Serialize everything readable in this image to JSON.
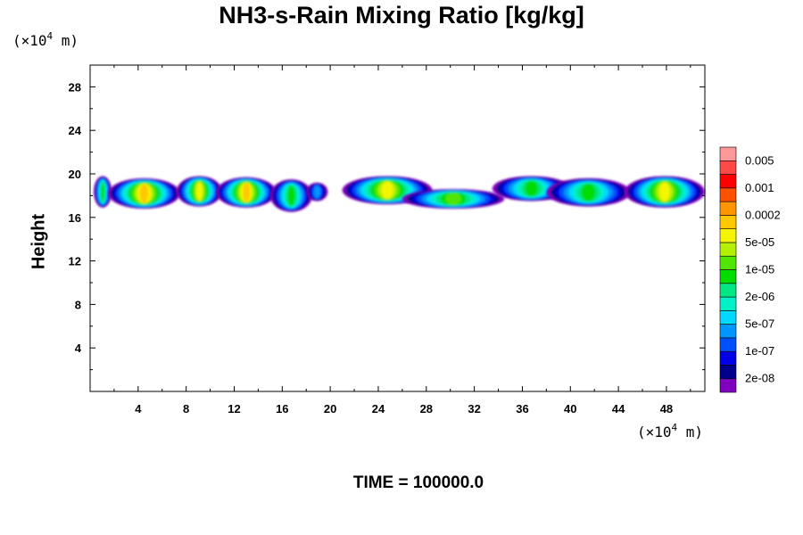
{
  "chart_data": {
    "type": "heatmap",
    "title": "NH3-s-Rain Mixing Ratio [kg/kg]",
    "ylabel": "Height",
    "xlabel": "",
    "x_unit": {
      "prefix": "(×10",
      "exp": "4",
      "suffix": " m)"
    },
    "y_unit": {
      "prefix": "(×10",
      "exp": "4",
      "suffix": " m)"
    },
    "xlim": [
      0,
      51.2
    ],
    "ylim": [
      0,
      30
    ],
    "x_ticks": [
      4,
      8,
      12,
      16,
      20,
      24,
      28,
      32,
      36,
      40,
      44,
      48
    ],
    "y_ticks": [
      4,
      8,
      12,
      16,
      20,
      24,
      28
    ],
    "colorbar": {
      "colors": [
        "#7f00bf",
        "#00008b",
        "#0000e6",
        "#0050ff",
        "#0096ff",
        "#00d8ff",
        "#00f0c8",
        "#00e680",
        "#00dc00",
        "#50e600",
        "#b4f000",
        "#f5f500",
        "#ffc800",
        "#ff9600",
        "#ff5000",
        "#ff0000",
        "#ff4848",
        "#ff9999"
      ],
      "labels": [
        "2e-08",
        "1e-07",
        "5e-07",
        "2e-06",
        "1e-05",
        "5e-05",
        "0.0002",
        "0.001",
        "0.005"
      ]
    },
    "blobs": [
      {
        "x0": 0.3,
        "x1": 1.8,
        "y0": 16.9,
        "y1": 19.8,
        "level": 8
      },
      {
        "x0": 1.5,
        "x1": 7.5,
        "y0": 16.8,
        "y1": 19.6,
        "level": 12
      },
      {
        "x0": 7.2,
        "x1": 11.0,
        "y0": 17.0,
        "y1": 19.8,
        "level": 11
      },
      {
        "x0": 10.5,
        "x1": 15.5,
        "y0": 16.9,
        "y1": 19.7,
        "level": 12
      },
      {
        "x0": 15.0,
        "x1": 18.5,
        "y0": 16.5,
        "y1": 19.5,
        "level": 8
      },
      {
        "x0": 18.0,
        "x1": 19.8,
        "y0": 17.5,
        "y1": 19.2,
        "level": 4
      },
      {
        "x0": 21.0,
        "x1": 28.5,
        "y0": 17.2,
        "y1": 19.8,
        "level": 11
      },
      {
        "x0": 26.0,
        "x1": 34.5,
        "y0": 16.8,
        "y1": 18.6,
        "level": 9
      },
      {
        "x0": 33.5,
        "x1": 40.0,
        "y0": 17.5,
        "y1": 19.8,
        "level": 8
      },
      {
        "x0": 38.0,
        "x1": 45.0,
        "y0": 17.0,
        "y1": 19.6,
        "level": 8
      },
      {
        "x0": 44.5,
        "x1": 51.2,
        "y0": 16.9,
        "y1": 19.8,
        "level": 11
      }
    ]
  },
  "footer": {
    "time_label": "TIME = 100000.0"
  }
}
